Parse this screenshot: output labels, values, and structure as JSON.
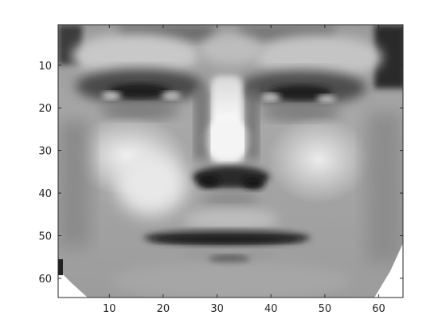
{
  "figure": {
    "kind": "grayscale image plot (imagesc-style)",
    "image_size": {
      "rows": 64,
      "cols": 64
    },
    "colormap": "gray",
    "background_color": "#ffffff",
    "axes_color": "#262626"
  },
  "chart_data": {
    "type": "heatmap",
    "title": "",
    "xlabel": "",
    "ylabel": "",
    "xlim": [
      0.5,
      64.5
    ],
    "ylim": [
      0.5,
      64.5
    ],
    "y_direction": "reverse",
    "grid": false,
    "xticks": [
      10,
      20,
      30,
      40,
      50,
      60
    ],
    "xtick_labels": [
      "10",
      "20",
      "30",
      "40",
      "50",
      "60"
    ],
    "yticks": [
      10,
      20,
      30,
      40,
      50,
      60
    ],
    "ytick_labels": [
      "10",
      "20",
      "30",
      "40",
      "50",
      "60"
    ]
  }
}
